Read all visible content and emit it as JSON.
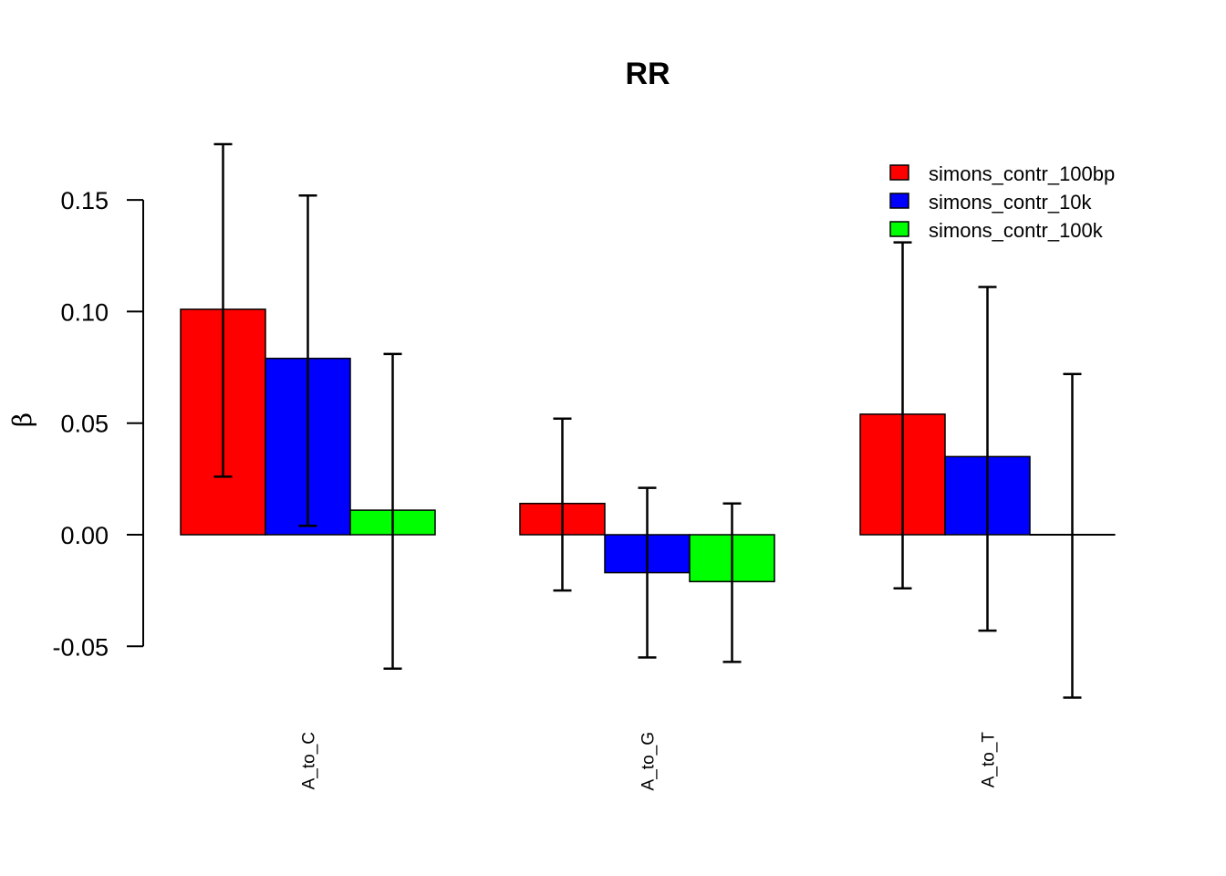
{
  "chart_data": {
    "type": "bar",
    "title": "RR",
    "xlabel": "",
    "ylabel": "β",
    "categories": [
      "A_to_C",
      "A_to_G",
      "A_to_T"
    ],
    "yticks": [
      -0.05,
      0.0,
      0.05,
      0.1,
      0.15
    ],
    "ytick_labels": [
      "-0.05",
      "0.00",
      "0.05",
      "0.10",
      "0.15"
    ],
    "ylim": [
      -0.075,
      0.19
    ],
    "grid": false,
    "legend_position": "top-right",
    "series": [
      {
        "name": "simons_contr_100bp",
        "color": "#ff0000",
        "values": [
          0.101,
          0.014,
          0.054
        ],
        "ci_low": [
          0.026,
          -0.025,
          -0.024
        ],
        "ci_high": [
          0.175,
          0.052,
          0.131
        ]
      },
      {
        "name": "simons_contr_10k",
        "color": "#0000ff",
        "values": [
          0.079,
          -0.017,
          0.035
        ],
        "ci_low": [
          0.004,
          -0.055,
          -0.043
        ],
        "ci_high": [
          0.152,
          0.021,
          0.111
        ]
      },
      {
        "name": "simons_contr_100k",
        "color": "#00ff00",
        "values": [
          0.011,
          -0.021,
          0.0
        ],
        "ci_low": [
          -0.06,
          -0.057,
          -0.073
        ],
        "ci_high": [
          0.081,
          0.014,
          0.072
        ]
      }
    ]
  }
}
